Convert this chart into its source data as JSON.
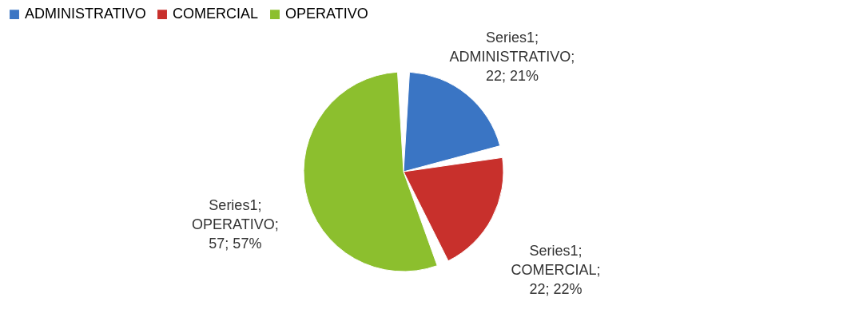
{
  "chart_data": {
    "type": "pie",
    "categories": [
      "ADMINISTRATIVO",
      "COMERCIAL",
      "OPERATIVO"
    ],
    "values": [
      22,
      22,
      57
    ],
    "colors": [
      "#3a75c4",
      "#c8302c",
      "#8cbf2e"
    ],
    "value_labels": [
      "Series1; ADMINISTRATIVO; 22; 21%",
      "Series1; COMERCIAL; 22; 22%",
      "Series1; OPERATIVO; 57; 57%"
    ],
    "legend": "top"
  }
}
